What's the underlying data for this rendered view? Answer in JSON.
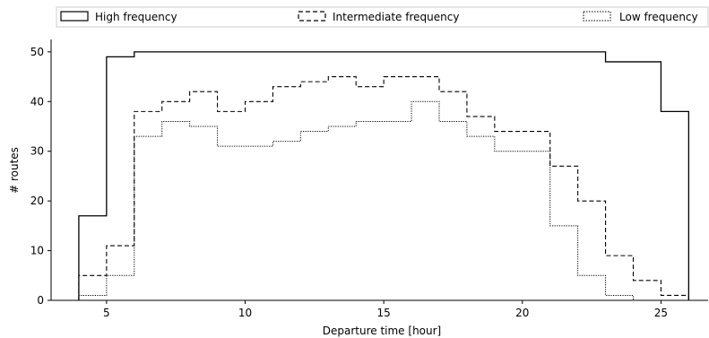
{
  "chart_data": {
    "type": "line",
    "subtype": "step",
    "title": "",
    "xlabel": "Departure time [hour]",
    "ylabel": "# routes",
    "xlim": [
      3.0,
      26.7
    ],
    "ylim": [
      0,
      52.5
    ],
    "x_ticks": [
      5,
      10,
      15,
      20,
      25
    ],
    "y_ticks": [
      0,
      10,
      20,
      30,
      40,
      50
    ],
    "legend_position": "top",
    "grid": false,
    "bin_edges": [
      4,
      5,
      6,
      7,
      8,
      9,
      10,
      11,
      12,
      13,
      14,
      15,
      16,
      17,
      18,
      19,
      20,
      21,
      22,
      23,
      24,
      25,
      26
    ],
    "series": [
      {
        "name": "High frequency",
        "line_style": "solid",
        "color": "#000000",
        "values": [
          17,
          49,
          50,
          50,
          50,
          50,
          50,
          50,
          50,
          50,
          50,
          50,
          50,
          50,
          50,
          50,
          50,
          50,
          50,
          48,
          48,
          38
        ]
      },
      {
        "name": "Intermediate frequency",
        "line_style": "dashed",
        "color": "#000000",
        "values": [
          5,
          11,
          38,
          40,
          42,
          38,
          40,
          43,
          44,
          45,
          43,
          45,
          45,
          42,
          37,
          34,
          34,
          27,
          20,
          9,
          4,
          1
        ]
      },
      {
        "name": "Low frequency",
        "line_style": "dotted",
        "color": "#000000",
        "values": [
          1,
          5,
          33,
          36,
          35,
          31,
          31,
          32,
          34,
          35,
          36,
          36,
          40,
          36,
          33,
          30,
          30,
          15,
          5,
          1,
          0,
          0
        ]
      }
    ]
  }
}
